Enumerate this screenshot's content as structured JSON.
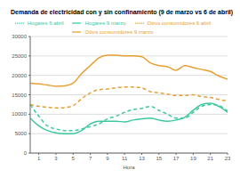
{
  "chart_data": {
    "type": "line",
    "title": "Demanda de electricidad con y sin confinamiento (9 de marzo vs 6 de abril)",
    "x_label": "Hora",
    "x": [
      0,
      1,
      2,
      3,
      4,
      5,
      6,
      7,
      8,
      9,
      10,
      11,
      12,
      13,
      14,
      15,
      16,
      17,
      18,
      19,
      20,
      21,
      22,
      23
    ],
    "xlim": [
      0,
      23
    ],
    "xticks": [
      1,
      3,
      5,
      7,
      9,
      11,
      13,
      15,
      17,
      19,
      21,
      23
    ],
    "ylim": [
      0,
      30000
    ],
    "yticks": [
      0,
      5000,
      10000,
      15000,
      20000,
      25000,
      30000
    ],
    "grid": true,
    "legend": "top",
    "series": [
      {
        "name": "Hogares 9 marzo",
        "color": "#3cc8a0",
        "line_style": "solid",
        "values": [
          9000,
          7000,
          5800,
          5200,
          5000,
          5000,
          5800,
          7500,
          8200,
          8200,
          8200,
          8000,
          8500,
          8800,
          9000,
          8500,
          8200,
          8500,
          9200,
          11000,
          12500,
          12800,
          12000,
          10500
        ]
      },
      {
        "name": "Otros consumidores 9 marzo",
        "color": "#e6a032",
        "line_style": "solid",
        "values": [
          18000,
          17800,
          17500,
          17200,
          17300,
          18000,
          20500,
          22500,
          24500,
          25200,
          25200,
          25000,
          25000,
          24800,
          23200,
          22500,
          22200,
          21300,
          22500,
          22000,
          21500,
          21000,
          19800,
          19000
        ]
      },
      {
        "name": "Hogares 6 abril",
        "color": "#3cc8a0",
        "line_style": "dashed",
        "values": [
          12500,
          9500,
          7000,
          6200,
          5800,
          5800,
          6200,
          6800,
          7500,
          8800,
          9500,
          10500,
          11200,
          11500,
          12000,
          11000,
          10000,
          9000,
          9000,
          10500,
          12000,
          12500,
          12200,
          10800
        ]
      },
      {
        "name": "Otros consumidores 6 abril",
        "color": "#e6a032",
        "line_style": "dashed",
        "values": [
          12500,
          12000,
          11800,
          11600,
          11700,
          12200,
          14000,
          15500,
          16300,
          16500,
          16800,
          17000,
          17000,
          16800,
          15800,
          15500,
          15200,
          14800,
          14800,
          15000,
          14500,
          14300,
          13800,
          13400
        ]
      }
    ]
  }
}
